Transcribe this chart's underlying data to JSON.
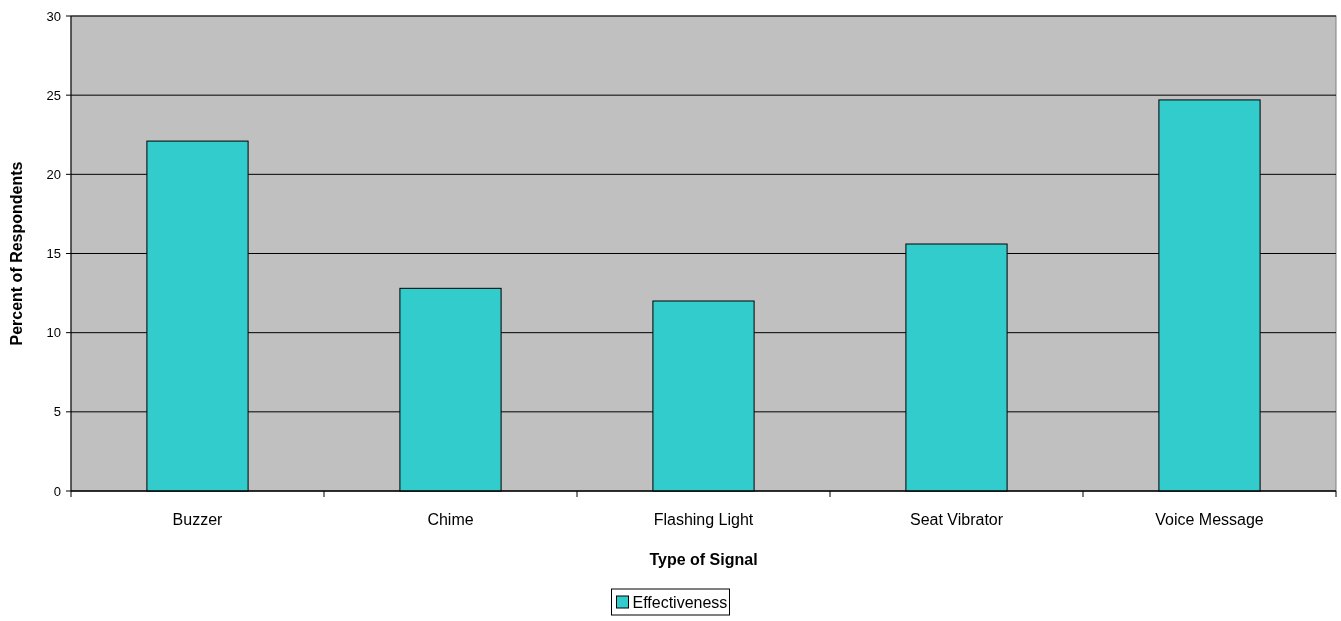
{
  "chart_data": {
    "type": "bar",
    "xlabel": "Type of Signal",
    "ylabel": "Percent of Respondents",
    "categories": [
      "Buzzer",
      "Chime",
      "Flashing Light",
      "Seat Vibrator",
      "Voice Message"
    ],
    "series": [
      {
        "name": "Effectiveness",
        "color": "#33cccc",
        "values": [
          22.1,
          12.8,
          12.0,
          15.6,
          24.7
        ]
      }
    ],
    "ylim": [
      0,
      30
    ],
    "yticks": [
      0,
      5,
      10,
      15,
      20,
      25,
      30
    ],
    "grid": "y",
    "legend": "bottom"
  }
}
